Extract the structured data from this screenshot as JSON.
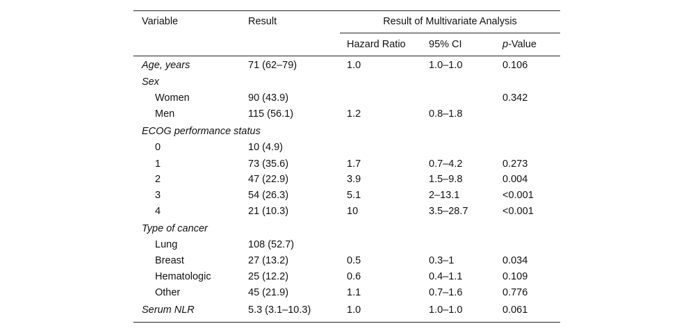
{
  "table": {
    "header": {
      "variable": "Variable",
      "result": "Result",
      "group": "Result of Multivariate Analysis",
      "subheaders": [
        {
          "text": "Hazard Ratio"
        },
        {
          "text": "95% CI"
        },
        {
          "italic": "p",
          "text": "-Value"
        }
      ]
    },
    "rows": [
      {
        "level": "group",
        "label": "Age, years",
        "cells": [
          "71 (62–79)",
          "1.0",
          "1.0–1.0",
          "0.106"
        ]
      },
      {
        "level": "group",
        "label": "Sex",
        "cells": [
          null,
          null,
          null,
          null
        ]
      },
      {
        "level": "item",
        "label": "Women",
        "cells": [
          "90 (43.9)",
          null,
          null,
          "0.342"
        ]
      },
      {
        "level": "item",
        "label": "Men",
        "cells": [
          "115 (56.1)",
          "1.2",
          "0.8–1.8",
          null
        ]
      },
      {
        "level": "group",
        "label": "ECOG performance status",
        "cells": [
          null,
          null,
          null,
          null
        ]
      },
      {
        "level": "item",
        "label": "0",
        "cells": [
          "10 (4.9)",
          null,
          null,
          null
        ]
      },
      {
        "level": "item",
        "label": "1",
        "cells": [
          "73 (35.6)",
          "1.7",
          "0.7–4.2",
          "0.273"
        ]
      },
      {
        "level": "item",
        "label": "2",
        "cells": [
          "47 (22.9)",
          "3.9",
          "1.5–9.8",
          "0.004"
        ]
      },
      {
        "level": "item",
        "label": "3",
        "cells": [
          "54 (26.3)",
          "5.1",
          "2–13.1",
          "<0.001"
        ]
      },
      {
        "level": "item",
        "label": "4",
        "cells": [
          "21 (10.3)",
          "10",
          "3.5–28.7",
          "<0.001"
        ]
      },
      {
        "level": "group",
        "label": "Type of cancer",
        "cells": [
          null,
          null,
          null,
          null
        ]
      },
      {
        "level": "item",
        "label": "Lung",
        "cells": [
          "108 (52.7)",
          null,
          null,
          null
        ]
      },
      {
        "level": "item",
        "label": "Breast",
        "cells": [
          "27 (13.2)",
          "0.5",
          "0.3–1",
          "0.034"
        ]
      },
      {
        "level": "item",
        "label": "Hematologic",
        "cells": [
          "25 (12.2)",
          "0.6",
          "0.4–1.1",
          "0.109"
        ]
      },
      {
        "level": "item",
        "label": "Other",
        "cells": [
          "45 (21.9)",
          "1.1",
          "0.7–1.6",
          "0.776"
        ]
      },
      {
        "level": "group",
        "label": "Serum NLR",
        "cells": [
          "5.3 (3.1–10.3)",
          "1.0",
          "1.0–1.0",
          "0.061"
        ]
      }
    ]
  }
}
